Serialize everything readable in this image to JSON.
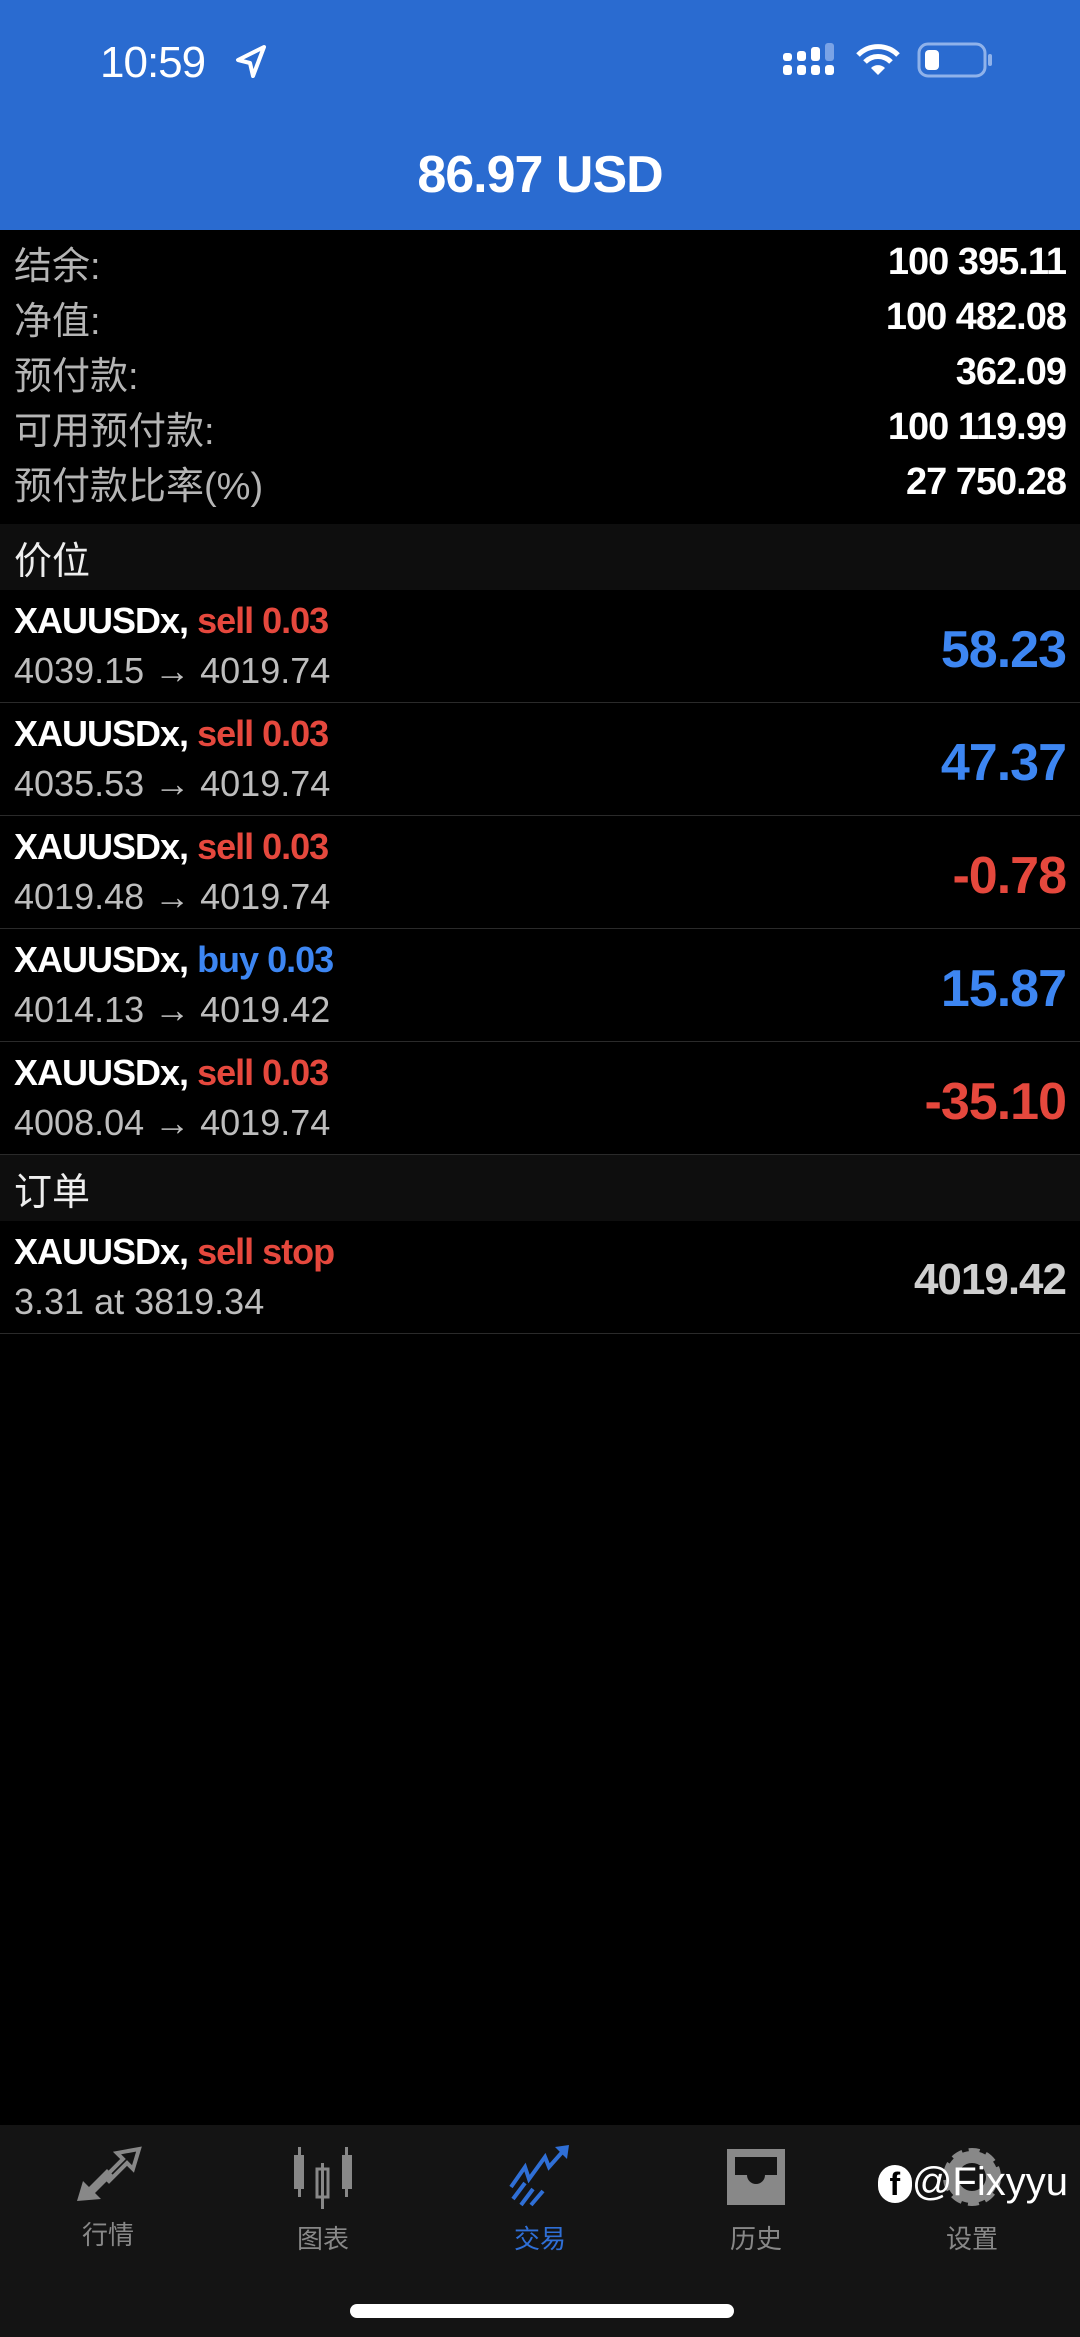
{
  "status": {
    "time": "10:59"
  },
  "header": {
    "title": "86.97 USD"
  },
  "account": [
    {
      "label": "结余:",
      "value": "100 395.11"
    },
    {
      "label": "净值:",
      "value": "100 482.08"
    },
    {
      "label": "预付款:",
      "value": "362.09"
    },
    {
      "label": "可用预付款:",
      "value": "100 119.99"
    },
    {
      "label": "预付款比率(%)",
      "value": "27 750.28"
    }
  ],
  "positions_header": "价位",
  "positions": [
    {
      "symbol": "XAUUSDx,",
      "side": "sell 0.03",
      "prices": "4039.15 → 4019.74",
      "profit": "58.23",
      "color": "blue"
    },
    {
      "symbol": "XAUUSDx,",
      "side": "sell 0.03",
      "prices": "4035.53 → 4019.74",
      "profit": "47.37",
      "color": "blue"
    },
    {
      "symbol": "XAUUSDx,",
      "side": "sell 0.03",
      "prices": "4019.48 → 4019.74",
      "profit": "-0.78",
      "color": "red"
    },
    {
      "symbol": "XAUUSDx,",
      "side": "buy 0.03",
      "prices": "4014.13 → 4019.42",
      "profit": "15.87",
      "color": "blue"
    },
    {
      "symbol": "XAUUSDx,",
      "side": "sell 0.03",
      "prices": "4008.04 → 4019.74",
      "profit": "-35.10",
      "color": "red"
    }
  ],
  "orders_header": "订单",
  "orders": [
    {
      "symbol": "XAUUSDx,",
      "side": "sell stop",
      "detail": "3.31 at 3819.34",
      "price": "4019.42"
    }
  ],
  "tabs": [
    {
      "label": "行情",
      "icon": "quotes-arrows-icon"
    },
    {
      "label": "图表",
      "icon": "candlestick-icon"
    },
    {
      "label": "交易",
      "icon": "trade-chart-icon",
      "active": true
    },
    {
      "label": "历史",
      "icon": "inbox-tray-icon"
    },
    {
      "label": "设置",
      "icon": "gear-icon"
    }
  ],
  "watermark": "@Fixyyu",
  "colors": {
    "header": "#2a6bd0",
    "profit": "#3d86f2",
    "loss": "#e5483d",
    "sell": "#e5483d",
    "buy": "#3d86f2"
  }
}
